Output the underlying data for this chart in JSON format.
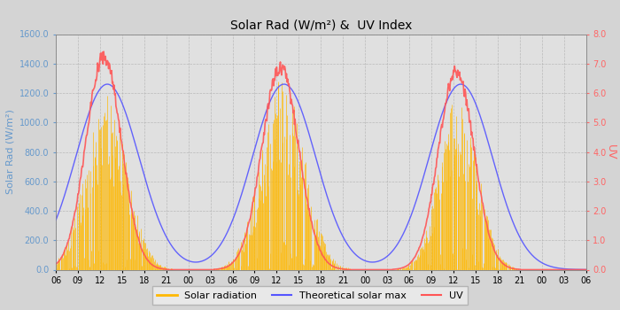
{
  "title": "Solar Rad (W/m²) &  UV Index",
  "ylabel_left": "Solar Rad (W/m²)",
  "ylabel_right": "UV",
  "ylim_left": [
    0,
    1600
  ],
  "ylim_right": [
    0,
    8.0
  ],
  "yticks_left": [
    0.0,
    200.0,
    400.0,
    600.0,
    800.0,
    1000.0,
    1200.0,
    1400.0,
    1600.0
  ],
  "yticks_right": [
    0.0,
    1.0,
    2.0,
    3.0,
    4.0,
    5.0,
    6.0,
    7.0,
    8.0
  ],
  "xtick_labels": [
    "06",
    "09",
    "12",
    "15",
    "18",
    "21",
    "00",
    "03",
    "06",
    "09",
    "12",
    "15",
    "18",
    "21",
    "00",
    "03",
    "06",
    "09",
    "12",
    "15",
    "18",
    "21",
    "00",
    "03",
    "06"
  ],
  "background_color": "#d4d4d4",
  "plot_bg_color": "#e0e0e0",
  "grid_color": "#aaaaaa",
  "solar_rad_color": "#FFB800",
  "theo_max_color": "#5555ff",
  "uv_color": "#ff5555",
  "legend_solar": "Solar radiation",
  "legend_theo": "Theoretical solar max",
  "legend_uv": "UV",
  "left_axis_color": "#6699cc",
  "right_axis_color": "#ff6666"
}
